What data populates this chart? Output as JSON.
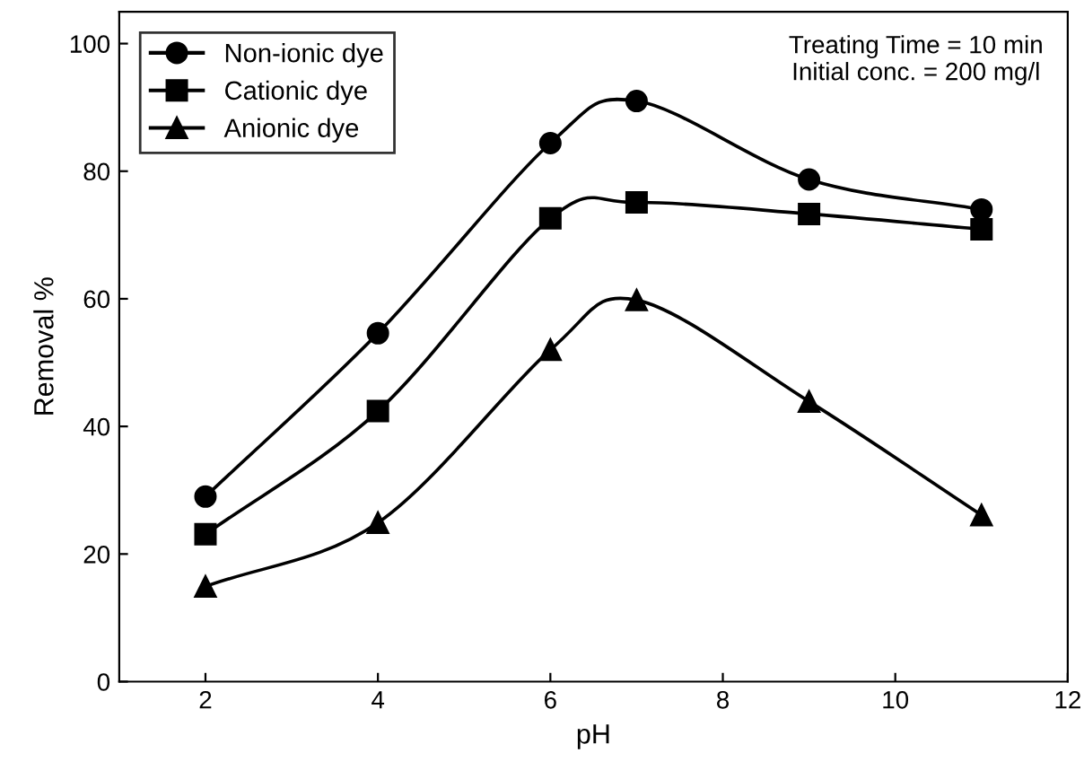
{
  "chart_data": {
    "type": "line",
    "xlabel": "pH",
    "ylabel": "Removal %",
    "x": [
      2,
      4,
      6,
      7,
      9,
      11
    ],
    "series": [
      {
        "name": "Non-ionic dye",
        "color": "#000000",
        "marker": "circle",
        "values": [
          29.0,
          54.6,
          84.4,
          91.0,
          78.7,
          74.0
        ]
      },
      {
        "name": "Cationic dye",
        "color": "#000000",
        "marker": "square",
        "values": [
          23.1,
          42.4,
          72.6,
          75.1,
          73.3,
          70.9
        ]
      },
      {
        "name": "Anionic dye",
        "color": "#000000",
        "marker": "triangle",
        "values": [
          14.9,
          24.9,
          52.0,
          59.8,
          43.9,
          26.1
        ]
      }
    ],
    "xlim": [
      1,
      12
    ],
    "xticks": [
      2,
      4,
      6,
      8,
      10,
      12
    ],
    "ylim": [
      0,
      105
    ],
    "yticks": [
      0,
      20,
      40,
      60,
      80,
      100
    ],
    "grid": false,
    "legend": "top left",
    "line_style": "solid",
    "annotations": [
      "Treating Time = 10 min\nInitial conc. = 200 mg/l"
    ]
  }
}
